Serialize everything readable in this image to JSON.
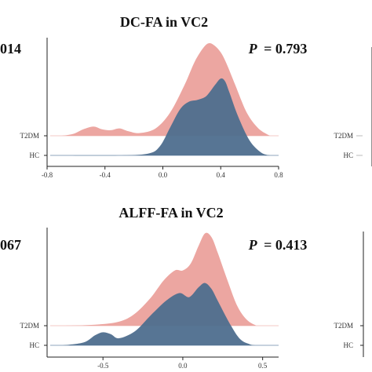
{
  "edge_texts": [
    "014",
    "067"
  ],
  "colors": {
    "t2dm": "#eca6a1",
    "hc": "#4e6e8e"
  },
  "chart_data": [
    {
      "type": "area",
      "title": "DC-FA in VC2",
      "p_label": "P",
      "p_value": "= 0.793",
      "series": [
        {
          "name": "T2DM",
          "color": "#eca6a1",
          "x": [
            -0.7,
            -0.62,
            -0.55,
            -0.48,
            -0.42,
            -0.36,
            -0.3,
            -0.24,
            -0.16,
            -0.05,
            0.05,
            0.15,
            0.22,
            0.28,
            0.32,
            0.36,
            0.4,
            0.44,
            0.5,
            0.58,
            0.66,
            0.74
          ],
          "y": [
            0.0,
            0.02,
            0.07,
            0.1,
            0.07,
            0.06,
            0.08,
            0.05,
            0.03,
            0.08,
            0.25,
            0.55,
            0.8,
            0.95,
            1.0,
            0.97,
            0.9,
            0.78,
            0.55,
            0.25,
            0.08,
            0.0
          ]
        },
        {
          "name": "HC",
          "color": "#4e6e8e",
          "x": [
            -0.7,
            -0.3,
            -0.1,
            -0.02,
            0.05,
            0.12,
            0.18,
            0.24,
            0.3,
            0.36,
            0.4,
            0.43,
            0.46,
            0.52,
            0.6,
            0.68,
            0.74
          ],
          "y": [
            0.0,
            0.0,
            0.02,
            0.1,
            0.3,
            0.5,
            0.58,
            0.6,
            0.64,
            0.76,
            0.83,
            0.8,
            0.68,
            0.42,
            0.16,
            0.03,
            0.0
          ]
        }
      ],
      "xticks": [
        "-0.8",
        "-0.4",
        "0.0",
        "0.4",
        "0.8"
      ],
      "xlim": [
        -0.8,
        0.8
      ],
      "ylabels": [
        "T2DM",
        "HC"
      ]
    },
    {
      "type": "area",
      "title": "ALFF-FA in VC2",
      "p_label": "P",
      "p_value": "= 0.413",
      "series": [
        {
          "name": "T2DM",
          "color": "#eca6a1",
          "x": [
            -0.75,
            -0.55,
            -0.4,
            -0.3,
            -0.2,
            -0.12,
            -0.05,
            0.0,
            0.05,
            0.1,
            0.14,
            0.18,
            0.22,
            0.28,
            0.34,
            0.4,
            0.46
          ],
          "y": [
            0.0,
            0.01,
            0.04,
            0.12,
            0.28,
            0.45,
            0.55,
            0.55,
            0.62,
            0.8,
            0.92,
            0.88,
            0.72,
            0.45,
            0.2,
            0.06,
            0.0
          ]
        },
        {
          "name": "HC",
          "color": "#4e6e8e",
          "x": [
            -0.75,
            -0.62,
            -0.55,
            -0.5,
            -0.45,
            -0.4,
            -0.3,
            -0.2,
            -0.1,
            -0.02,
            0.04,
            0.1,
            0.14,
            0.18,
            0.22,
            0.3,
            0.36,
            0.42,
            0.46
          ],
          "y": [
            0.0,
            0.03,
            0.1,
            0.13,
            0.11,
            0.07,
            0.14,
            0.3,
            0.45,
            0.52,
            0.48,
            0.58,
            0.62,
            0.56,
            0.44,
            0.2,
            0.06,
            0.01,
            0.0
          ]
        }
      ],
      "xticks": [
        "-0.5",
        "0.0",
        "0.5"
      ],
      "xlim": [
        -0.85,
        0.6
      ],
      "ylabels": [
        "T2DM",
        "HC"
      ]
    },
    {
      "type": "area",
      "partial": true,
      "ylabels": [
        "T2DM",
        "HC"
      ]
    },
    {
      "type": "area",
      "partial": true,
      "ylabels": [
        "T2DM",
        "HC"
      ]
    }
  ]
}
